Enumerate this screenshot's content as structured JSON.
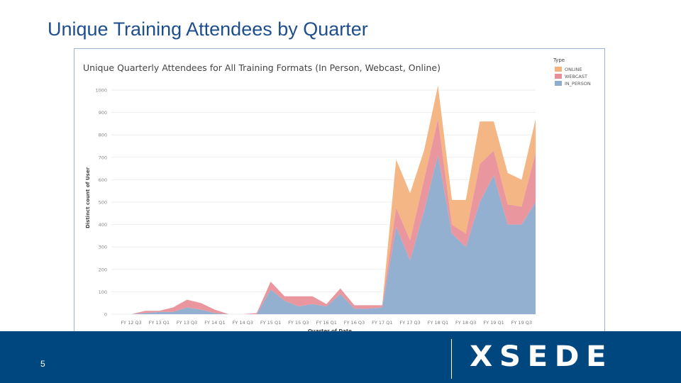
{
  "slide": {
    "title": "Unique Training Attendees by Quarter",
    "page_number": "5",
    "logo_text": "XSEDE"
  },
  "colors": {
    "online": "#f4b27f",
    "webcast": "#e8909a",
    "in_person": "#8eaccd",
    "title_blue": "#1f4e8c",
    "footer_blue": "#00467f"
  },
  "chart_data": {
    "type": "area",
    "stacked": true,
    "title": "Unique Quarterly Attendees for All Training Formats (In Person, Webcast, Online)",
    "xlabel": "Quarter of Date",
    "ylabel": "Distinct count of User",
    "ylim": [
      0,
      1000
    ],
    "yticks": [
      0,
      100,
      200,
      300,
      400,
      500,
      600,
      700,
      800,
      900,
      1000
    ],
    "categories": [
      "FY 12 Q3",
      "FY 12 Q4",
      "FY 13 Q1",
      "FY 13 Q2",
      "FY 13 Q3",
      "FY 13 Q4",
      "FY 14 Q1",
      "FY 14 Q2",
      "FY 14 Q3",
      "FY 14 Q4",
      "FY 15 Q1",
      "FY 15 Q2",
      "FY 15 Q3",
      "FY 15 Q4",
      "FY 16 Q1",
      "FY 16 Q2",
      "FY 16 Q3",
      "FY 16 Q4",
      "FY 17 Q1",
      "FY 17 Q2",
      "FY 17 Q3",
      "FY 17 Q4",
      "FY 18 Q1",
      "FY 18 Q2",
      "FY 18 Q3",
      "FY 18 Q4",
      "FY 19 Q1",
      "FY 19 Q2",
      "FY 19 Q3",
      "FY 19 Q4"
    ],
    "tick_labels": [
      "FY 12 Q3",
      "FY 13 Q1",
      "FY 13 Q3",
      "FY 14 Q1",
      "FY 14 Q3",
      "FY 15 Q1",
      "FY 15 Q3",
      "FY 16 Q1",
      "FY 16 Q3",
      "FY 17 Q1",
      "FY 17 Q3",
      "FY 18 Q1",
      "FY 18 Q3",
      "FY 19 Q1",
      "FY 19 Q3"
    ],
    "legend_title": "Type",
    "legend_position": "top-right",
    "series": [
      {
        "name": "IN_PERSON",
        "color": "#8eaccd",
        "values": [
          0,
          5,
          10,
          10,
          30,
          20,
          5,
          0,
          0,
          0,
          110,
          60,
          35,
          45,
          35,
          90,
          25,
          25,
          30,
          390,
          240,
          460,
          710,
          360,
          300,
          500,
          620,
          400,
          400,
          500
        ]
      },
      {
        "name": "WEBCAST",
        "color": "#e8909a",
        "values": [
          0,
          10,
          5,
          20,
          35,
          30,
          15,
          0,
          0,
          5,
          35,
          20,
          45,
          35,
          10,
          25,
          15,
          15,
          10,
          85,
          90,
          140,
          160,
          40,
          60,
          170,
          110,
          90,
          80,
          220
        ]
      },
      {
        "name": "ONLINE",
        "color": "#f4b27f",
        "values": [
          0,
          0,
          0,
          0,
          0,
          0,
          0,
          0,
          0,
          0,
          0,
          0,
          0,
          0,
          0,
          0,
          0,
          0,
          0,
          215,
          210,
          130,
          150,
          110,
          150,
          190,
          130,
          140,
          120,
          150
        ]
      }
    ]
  }
}
